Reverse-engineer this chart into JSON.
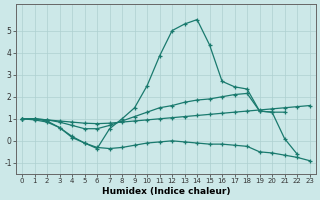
{
  "background_color": "#cce8e8",
  "grid_color": "#aed0d0",
  "line_color": "#1a7a6e",
  "xlabel": "Humidex (Indice chaleur)",
  "xlim": [
    -0.5,
    23.5
  ],
  "ylim": [
    -1.5,
    6.2
  ],
  "yticks": [
    -1,
    0,
    1,
    2,
    3,
    4,
    5
  ],
  "xticks": [
    0,
    1,
    2,
    3,
    4,
    5,
    6,
    7,
    8,
    9,
    10,
    11,
    12,
    13,
    14,
    15,
    16,
    17,
    18,
    19,
    20,
    21,
    22,
    23
  ],
  "line1_x": [
    0,
    1,
    2,
    3,
    4,
    5,
    6,
    7,
    8,
    9,
    10,
    11,
    12,
    13,
    14,
    15,
    16,
    17,
    18,
    19,
    20,
    21,
    22
  ],
  "line1_y": [
    1.0,
    1.0,
    0.9,
    0.6,
    0.2,
    -0.1,
    -0.35,
    0.55,
    1.0,
    1.5,
    2.5,
    3.85,
    5.0,
    5.3,
    5.5,
    4.35,
    2.7,
    2.45,
    2.35,
    1.35,
    1.3,
    0.1,
    -0.6
  ],
  "line2_x": [
    0,
    1,
    2,
    3,
    4,
    5,
    6,
    7,
    8,
    9,
    10,
    11,
    12,
    13,
    14,
    15,
    16,
    17,
    18,
    19,
    20,
    21
  ],
  "line2_y": [
    1.0,
    1.0,
    0.95,
    0.85,
    0.7,
    0.55,
    0.55,
    0.7,
    0.9,
    1.1,
    1.3,
    1.5,
    1.6,
    1.75,
    1.85,
    1.9,
    2.0,
    2.1,
    2.15,
    1.35,
    1.3,
    1.3
  ],
  "line3_x": [
    0,
    1,
    2,
    3,
    4,
    5,
    6,
    7,
    8,
    9,
    10,
    11,
    12,
    13,
    14,
    15,
    16,
    17,
    18,
    19,
    20,
    21,
    22,
    23
  ],
  "line3_y": [
    1.0,
    1.0,
    0.95,
    0.9,
    0.85,
    0.8,
    0.78,
    0.8,
    0.85,
    0.9,
    0.95,
    1.0,
    1.05,
    1.1,
    1.15,
    1.2,
    1.25,
    1.3,
    1.35,
    1.4,
    1.45,
    1.5,
    1.55,
    1.6
  ],
  "line4_x": [
    0,
    1,
    2,
    3,
    4,
    5,
    6,
    7,
    8,
    9,
    10,
    11,
    12,
    13,
    14,
    15,
    16,
    17,
    18,
    19,
    20,
    21,
    22,
    23
  ],
  "line4_y": [
    1.0,
    0.95,
    0.85,
    0.6,
    0.15,
    -0.1,
    -0.3,
    -0.35,
    -0.3,
    -0.2,
    -0.1,
    -0.05,
    0.0,
    -0.05,
    -0.1,
    -0.15,
    -0.15,
    -0.2,
    -0.25,
    -0.5,
    -0.55,
    -0.65,
    -0.75,
    -0.9
  ]
}
